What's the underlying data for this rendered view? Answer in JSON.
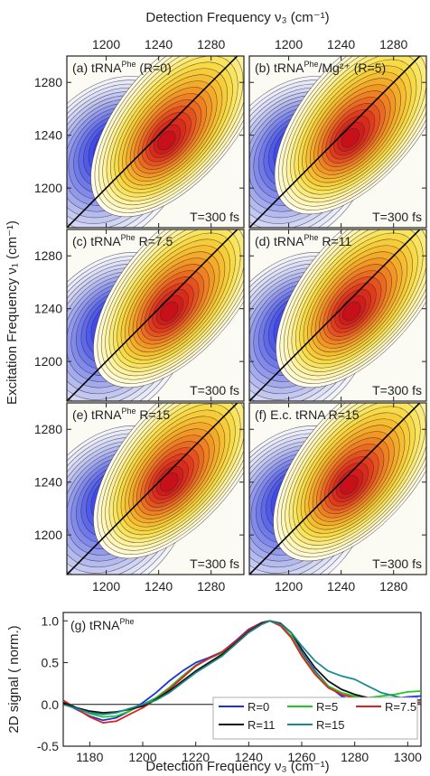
{
  "figure": {
    "top_axis_label": "Detection Frequency ν₃ (cm⁻¹)",
    "left_axis_label": "Excitation Frequency ν₁ (cm⁻¹)",
    "bottom_axis_label": "Detection Frequency ν₃ (cm⁻¹)",
    "twod_x_ticks": [
      1200,
      1240,
      1280
    ],
    "twod_y_ticks": [
      1200,
      1240,
      1280
    ]
  },
  "chart_data": [
    {
      "type": "heatmap",
      "panel": "(a)",
      "title_prefix": "(a) tRNA",
      "title_sup": "Phe",
      "title_suffix": " (R=0)",
      "time_label": "T=300 fs",
      "xlim": [
        1170,
        1305
      ],
      "ylim": [
        1170,
        1300
      ],
      "negative_peak": {
        "x": 1206,
        "y": 1232
      },
      "positive_peak": {
        "x": 1246,
        "y": 1236
      },
      "colors": {
        "negative": "#2a3cf0",
        "positive": "#d9141c",
        "mid_positive": "#f7e21a"
      }
    },
    {
      "type": "heatmap",
      "panel": "(b)",
      "title_prefix": "(b) tRNA",
      "title_sup": "Phe",
      "title_suffix": "/Mg²⁺ (R=5)",
      "time_label": "T=300 fs",
      "xlim": [
        1170,
        1305
      ],
      "ylim": [
        1170,
        1300
      ],
      "negative_peak": {
        "x": 1208,
        "y": 1232
      },
      "positive_peak": {
        "x": 1247,
        "y": 1238
      }
    },
    {
      "type": "heatmap",
      "panel": "(c)",
      "title_prefix": "(c) tRNA",
      "title_sup": "Phe",
      "title_suffix": " R=7.5",
      "time_label": "T=300 fs",
      "xlim": [
        1170,
        1305
      ],
      "ylim": [
        1170,
        1300
      ],
      "negative_peak": {
        "x": 1208,
        "y": 1230
      },
      "positive_peak": {
        "x": 1248,
        "y": 1238
      }
    },
    {
      "type": "heatmap",
      "panel": "(d)",
      "title_prefix": "(d) tRNA",
      "title_sup": "Phe",
      "title_suffix": " R=11",
      "time_label": "T=300 fs",
      "xlim": [
        1170,
        1305
      ],
      "ylim": [
        1170,
        1300
      ],
      "negative_peak": {
        "x": 1208,
        "y": 1230
      },
      "positive_peak": {
        "x": 1248,
        "y": 1238
      }
    },
    {
      "type": "heatmap",
      "panel": "(e)",
      "title_prefix": "(e) tRNA",
      "title_sup": "Phe",
      "title_suffix": " R=15",
      "time_label": "T=300 fs",
      "xlim": [
        1170,
        1305
      ],
      "ylim": [
        1170,
        1300
      ],
      "negative_peak": {
        "x": 1208,
        "y": 1230
      },
      "positive_peak": {
        "x": 1248,
        "y": 1240
      }
    },
    {
      "type": "heatmap",
      "panel": "(f)",
      "title_prefix": "(f) E.c. tRNA R=15",
      "title_sup": "",
      "title_suffix": "",
      "time_label": "T=300 fs",
      "xlim": [
        1170,
        1305
      ],
      "ylim": [
        1170,
        1300
      ],
      "negative_peak": {
        "x": 1206,
        "y": 1230
      },
      "positive_peak": {
        "x": 1246,
        "y": 1238
      }
    },
    {
      "type": "line",
      "panel": "(g)",
      "title_prefix": "(g) tRNA",
      "title_sup": "Phe",
      "xlabel": "Detection Frequency ν₃ (cm⁻¹)",
      "ylabel": "2D signal ( norm.)",
      "xlim": [
        1170,
        1305
      ],
      "ylim": [
        -0.5,
        1.1
      ],
      "x_ticks": [
        1180,
        1200,
        1220,
        1240,
        1260,
        1280,
        1300
      ],
      "y_ticks": [
        -0.5,
        0.0,
        0.5,
        1.0
      ],
      "x": [
        1170,
        1175,
        1180,
        1185,
        1190,
        1195,
        1200,
        1205,
        1210,
        1215,
        1220,
        1225,
        1230,
        1235,
        1240,
        1245,
        1248,
        1252,
        1256,
        1260,
        1265,
        1270,
        1275,
        1280,
        1285,
        1290,
        1295,
        1300,
        1305
      ],
      "series": [
        {
          "name": "R=0",
          "color": "#1f2fe0",
          "values": [
            0.02,
            -0.06,
            -0.14,
            -0.19,
            -0.16,
            -0.08,
            0.02,
            0.14,
            0.28,
            0.4,
            0.5,
            0.56,
            0.63,
            0.76,
            0.9,
            0.98,
            1.0,
            0.95,
            0.82,
            0.62,
            0.4,
            0.22,
            0.1,
            0.04,
            0.03,
            0.05,
            0.07,
            0.09,
            0.1
          ]
        },
        {
          "name": "R=5",
          "color": "#22c722",
          "values": [
            0.04,
            -0.04,
            -0.11,
            -0.15,
            -0.14,
            -0.08,
            0.0,
            0.08,
            0.2,
            0.34,
            0.47,
            0.55,
            0.62,
            0.74,
            0.88,
            0.97,
            1.0,
            0.95,
            0.82,
            0.6,
            0.38,
            0.22,
            0.14,
            0.1,
            0.08,
            0.1,
            0.12,
            0.15,
            0.16
          ]
        },
        {
          "name": "R=7.5",
          "color": "#e01f1f",
          "values": [
            0.05,
            -0.05,
            -0.15,
            -0.22,
            -0.2,
            -0.12,
            -0.04,
            0.06,
            0.18,
            0.32,
            0.46,
            0.55,
            0.63,
            0.75,
            0.89,
            0.98,
            1.0,
            0.94,
            0.8,
            0.58,
            0.36,
            0.2,
            0.12,
            0.08,
            0.06,
            0.04,
            0.03,
            0.02,
            0.02
          ]
        },
        {
          "name": "R=11",
          "color": "#111111",
          "values": [
            0.02,
            -0.04,
            -0.08,
            -0.1,
            -0.09,
            -0.06,
            -0.02,
            0.06,
            0.16,
            0.28,
            0.4,
            0.5,
            0.6,
            0.73,
            0.87,
            0.97,
            1.0,
            0.97,
            0.86,
            0.66,
            0.44,
            0.28,
            0.18,
            0.12,
            0.08,
            0.06,
            0.05,
            0.05,
            0.05
          ]
        },
        {
          "name": "R=15",
          "color": "#1a8a8a",
          "values": [
            0.0,
            -0.05,
            -0.1,
            -0.12,
            -0.1,
            -0.05,
            0.0,
            0.05,
            0.14,
            0.26,
            0.38,
            0.48,
            0.58,
            0.72,
            0.86,
            0.96,
            1.0,
            0.96,
            0.86,
            0.7,
            0.52,
            0.4,
            0.34,
            0.3,
            0.22,
            0.14,
            0.1,
            0.06,
            0.04
          ]
        }
      ],
      "legend_position": "bottom-right"
    }
  ]
}
